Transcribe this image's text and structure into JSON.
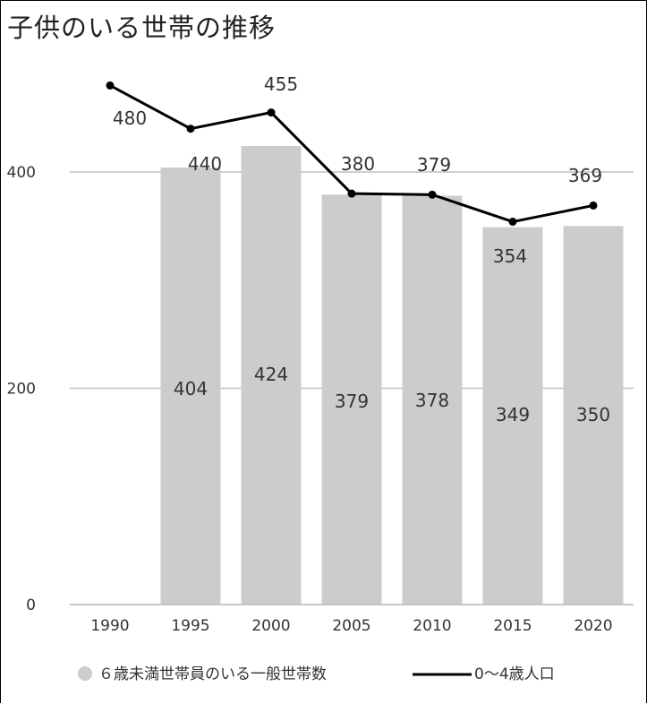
{
  "chart_data": {
    "type": "bar",
    "title": "子供のいる世帯の推移",
    "categories": [
      "1990",
      "1995",
      "2000",
      "2005",
      "2010",
      "2015",
      "2020"
    ],
    "y_ticks": [
      "0",
      "200",
      "400"
    ],
    "ylim": [
      0,
      500
    ],
    "grid": true,
    "legend_position": "bottom",
    "series": [
      {
        "name": "６歳未満世帯員のいる一般世帯数",
        "kind": "bar",
        "color": "#cccccc",
        "values": [
          null,
          404,
          424,
          379,
          378,
          349,
          350
        ],
        "labels": [
          "",
          "404",
          "424",
          "379",
          "378",
          "349",
          "350"
        ]
      },
      {
        "name": "0〜4歳人口",
        "kind": "line",
        "color": "#000000",
        "values": [
          480,
          440,
          455,
          380,
          379,
          354,
          369
        ],
        "labels": [
          "480",
          "440",
          "455",
          "380",
          "379",
          "354",
          "369"
        ]
      }
    ]
  }
}
